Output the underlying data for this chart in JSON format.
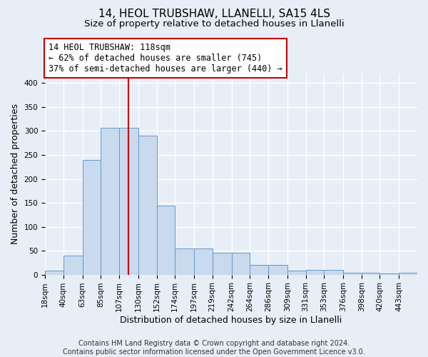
{
  "title": "14, HEOL TRUBSHAW, LLANELLI, SA15 4LS",
  "subtitle": "Size of property relative to detached houses in Llanelli",
  "xlabel": "Distribution of detached houses by size in Llanelli",
  "ylabel": "Number of detached properties",
  "bins": [
    18,
    40,
    63,
    85,
    107,
    130,
    152,
    174,
    197,
    219,
    242,
    264,
    286,
    309,
    331,
    353,
    376,
    398,
    420,
    443,
    465
  ],
  "values": [
    8,
    40,
    240,
    307,
    307,
    290,
    144,
    55,
    55,
    45,
    45,
    20,
    20,
    8,
    10,
    10,
    4,
    4,
    2,
    4
  ],
  "property_size": 118,
  "annotation_line1": "14 HEOL TRUBSHAW: 118sqm",
  "annotation_line2": "← 62% of detached houses are smaller (745)",
  "annotation_line3": "37% of semi-detached houses are larger (440) →",
  "bar_color": "#c9d9ee",
  "bar_edgecolor": "#6699cc",
  "vline_color": "#cc0000",
  "annotation_box_facecolor": "#ffffff",
  "annotation_box_edgecolor": "#cc0000",
  "background_color": "#e8eef8",
  "grid_color": "#ffffff",
  "footer_text": "Contains HM Land Registry data © Crown copyright and database right 2024.\nContains public sector information licensed under the Open Government Licence v3.0.",
  "ylim": [
    0,
    420
  ],
  "yticks": [
    0,
    50,
    100,
    150,
    200,
    250,
    300,
    350,
    400
  ],
  "title_fontsize": 11,
  "subtitle_fontsize": 9.5,
  "annotation_fontsize": 8.5,
  "tick_fontsize": 7.5,
  "ylabel_fontsize": 9,
  "xlabel_fontsize": 9,
  "footer_fontsize": 7
}
